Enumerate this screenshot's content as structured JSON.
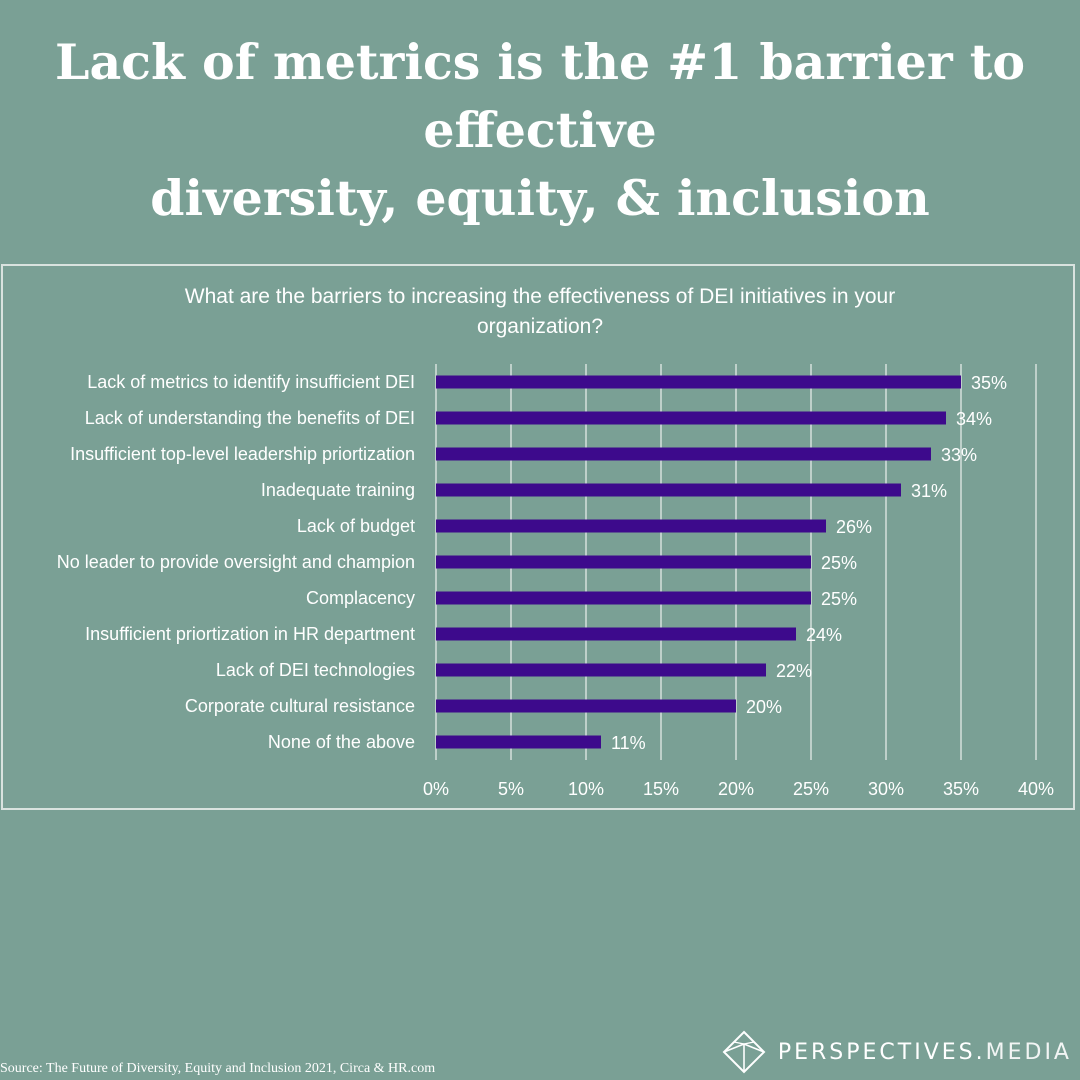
{
  "headline": {
    "line1": "Lack of metrics is the #1 barrier to effective",
    "line2": "diversity, equity, & inclusion"
  },
  "chart_data": {
    "type": "bar",
    "orientation": "horizontal",
    "title_line1": "What are the barriers to increasing the effectiveness of DEI initiatives in your",
    "title_line2": "organization?",
    "categories": [
      "Lack of metrics to identify insufficient DEI",
      "Lack of understanding the benefits of DEI",
      "Insufficient top-level leadership priortization",
      "Inadequate training",
      "Lack of budget",
      "No leader to provide oversight and champion",
      "Complacency",
      "Insufficient priortization in HR department",
      "Lack of DEI technologies",
      "Corporate cultural resistance",
      "None of the above"
    ],
    "values": [
      35,
      34,
      33,
      31,
      26,
      25,
      25,
      24,
      22,
      20,
      11
    ],
    "value_labels": [
      "35%",
      "34%",
      "33%",
      "31%",
      "26%",
      "25%",
      "25%",
      "24%",
      "22%",
      "20%",
      "11%"
    ],
    "xlim": [
      0,
      40
    ],
    "xticks": [
      0,
      5,
      10,
      15,
      20,
      25,
      30,
      35,
      40
    ],
    "xtick_labels": [
      "0%",
      "5%",
      "10%",
      "15%",
      "20%",
      "25%",
      "30%",
      "35%",
      "40%"
    ],
    "grid": "vertical",
    "bar_color": "#3d0a8c",
    "grid_color": "#d5e0dc"
  },
  "source": "Source:  The Future of Diversity, Equity and Inclusion 2021, Circa & HR.com",
  "brand": {
    "name_main": "PERSPECTIVES",
    "name_dot": ".",
    "name_suffix": "MEDIA",
    "logo_icon": "diamond-icon"
  },
  "colors": {
    "background": "#7aa095",
    "text": "#ffffff"
  }
}
